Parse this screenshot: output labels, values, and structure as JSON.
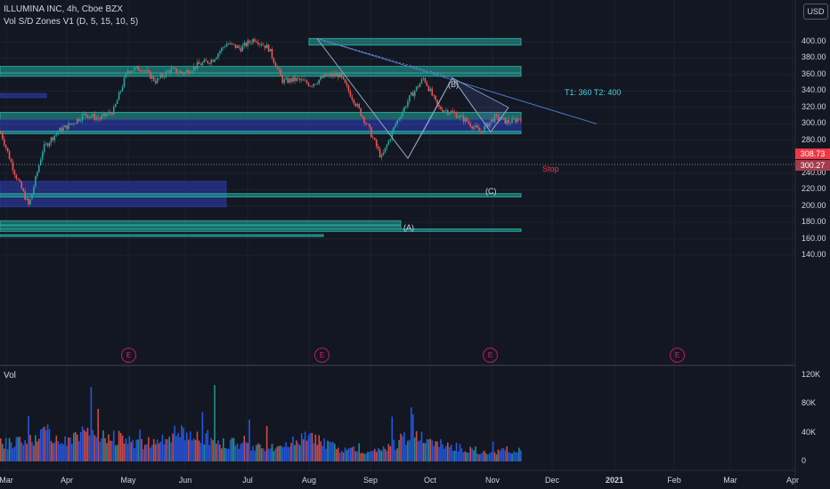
{
  "header": {
    "symbol_line": "ILLUMINA INC, 4h, Cboe BZX",
    "indicator_line": "Vol S/D Zones V1 (D, 5, 15, 10, 5)",
    "currency": "USD"
  },
  "volume_pane": {
    "label": "Vol"
  },
  "price_tags": {
    "current": "308.73",
    "secondary": "300.27",
    "current_color": "#f23645",
    "secondary_color": "#a33b4d"
  },
  "annotations": {
    "targets": "T1: 360 T2: 400",
    "stop": "Stop",
    "wave_a": "(A)",
    "wave_b": "(B)",
    "wave_c": "(C)",
    "event_label": "E"
  },
  "colors": {
    "background": "#131722",
    "supply_zone": "#26a69a",
    "demand_zone": "#283593",
    "candle_up": "#26a69a",
    "candle_down": "#ef5350",
    "volume": "#2962ff",
    "trendline": "#4a7bd6",
    "pattern_lines": "#90a4c4",
    "target_text": "#4dd0e1",
    "stop_text": "#f23645",
    "event_marker": "#e91e63"
  },
  "chart_data": {
    "type": "candlestick",
    "symbol": "ILLUMINA INC",
    "timeframe": "4h",
    "exchange": "Cboe BZX",
    "price_axis": {
      "range": [
        140,
        410
      ],
      "ticks": [
        "400.00",
        "380.00",
        "360.00",
        "340.00",
        "320.00",
        "300.00",
        "280.00",
        "260.00",
        "240.00",
        "220.00",
        "200.00",
        "180.00",
        "160.00",
        "140.00"
      ]
    },
    "volume_axis": {
      "range": [
        0,
        120000
      ],
      "ticks": [
        "120K",
        "80K",
        "40K",
        "0"
      ]
    },
    "time_axis": {
      "ticks": [
        "Mar",
        "Apr",
        "May",
        "Jun",
        "Jul",
        "Aug",
        "Sep",
        "Oct",
        "Nov",
        "Dec",
        "2021",
        "Feb",
        "Mar",
        "Apr"
      ]
    },
    "last_price": 308.73,
    "secondary_price": 300.27,
    "price_path": [
      [
        "Mar",
        290
      ],
      [
        "Mar",
        240
      ],
      [
        "Mar",
        200
      ],
      [
        "Apr",
        270
      ],
      [
        "Apr",
        290
      ],
      [
        "Apr",
        300
      ],
      [
        "May",
        312
      ],
      [
        "May",
        306
      ],
      [
        "May",
        316
      ],
      [
        "Jun",
        365
      ],
      [
        "Jun",
        368
      ],
      [
        "Jun",
        352
      ],
      [
        "Jun",
        366
      ],
      [
        "Jul",
        362
      ],
      [
        "Jul",
        372
      ],
      [
        "Jul",
        378
      ],
      [
        "Jul",
        398
      ],
      [
        "Aug",
        392
      ],
      [
        "Aug",
        404
      ],
      [
        "Aug",
        392
      ],
      [
        "Aug",
        352
      ],
      [
        "Sep",
        354
      ],
      [
        "Sep",
        348
      ],
      [
        "Sep",
        358
      ],
      [
        "Sep",
        360
      ],
      [
        "Sep",
        330
      ],
      [
        "Sep",
        298
      ],
      [
        "Sep",
        258
      ],
      [
        "Oct",
        300
      ],
      [
        "Oct",
        332
      ],
      [
        "Oct",
        356
      ],
      [
        "Oct",
        320
      ],
      [
        "Oct",
        314
      ],
      [
        "Nov",
        304
      ],
      [
        "Nov",
        290
      ],
      [
        "Nov",
        308
      ],
      [
        "Nov",
        302
      ],
      [
        "Nov",
        308
      ]
    ],
    "supply_demand_zones": [
      {
        "kind": "supply",
        "from": "Aug",
        "to": "Nov",
        "low": 396,
        "high": 404
      },
      {
        "kind": "supply",
        "from": "Mar",
        "to": "Nov",
        "low": 362,
        "high": 370
      },
      {
        "kind": "supply",
        "from": "Mar",
        "to": "Nov",
        "low": 358,
        "high": 362
      },
      {
        "kind": "demand",
        "from": "Mar",
        "to": "Apr",
        "low": 332,
        "high": 337
      },
      {
        "kind": "supply",
        "from": "Mar",
        "to": "Nov",
        "low": 305,
        "high": 314
      },
      {
        "kind": "demand",
        "from": "Mar",
        "to": "Nov",
        "low": 300,
        "high": 305
      },
      {
        "kind": "demand",
        "from": "Mar",
        "to": "Nov",
        "low": 290,
        "high": 300
      },
      {
        "kind": "supply",
        "from": "Mar",
        "to": "Nov",
        "low": 288,
        "high": 291
      },
      {
        "kind": "demand",
        "from": "Mar",
        "to": "Jun",
        "low": 199,
        "high": 230
      },
      {
        "kind": "supply",
        "from": "Mar",
        "to": "Nov",
        "low": 211,
        "high": 215
      },
      {
        "kind": "supply",
        "from": "Mar",
        "to": "Sep",
        "low": 177,
        "high": 182
      },
      {
        "kind": "supply",
        "from": "Mar",
        "to": "Sep",
        "low": 172,
        "high": 176
      },
      {
        "kind": "supply",
        "from": "Mar",
        "to": "Nov",
        "low": 169,
        "high": 172
      },
      {
        "kind": "supply",
        "from": "Mar",
        "to": "Aug",
        "low": 163,
        "high": 165
      }
    ],
    "harmonic_pattern": {
      "X": 404,
      "A": 258,
      "B": 356,
      "C": 290,
      "D": 320,
      "labels": [
        "(A)",
        "(B)",
        "(C)"
      ]
    },
    "trendline": {
      "from": [
        "Aug",
        404
      ],
      "to": [
        "Dec",
        300
      ]
    },
    "volume_profile_k": [
      28,
      30,
      32,
      36,
      40,
      44,
      40,
      36,
      38,
      42,
      46,
      44,
      40,
      36,
      34,
      30,
      28,
      30,
      34,
      38,
      42,
      44,
      42,
      38,
      34,
      30,
      28,
      26,
      24,
      22,
      20,
      22,
      26,
      30,
      34,
      36,
      32,
      28,
      24,
      20,
      18,
      16,
      14,
      16,
      20,
      26,
      34,
      40,
      36,
      30,
      26,
      24,
      22,
      20,
      18,
      16,
      14,
      16,
      18,
      16
    ]
  }
}
